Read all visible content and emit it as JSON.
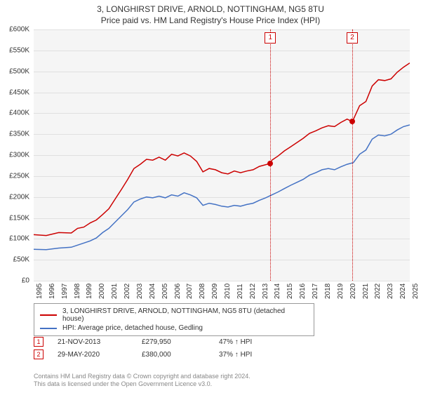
{
  "title_line1": "3, LONGHIRST DRIVE, ARNOLD, NOTTINGHAM, NG5 8TU",
  "title_line2": "Price paid vs. HM Land Registry's House Price Index (HPI)",
  "chart": {
    "type": "line",
    "background_color": "#f5f5f5",
    "grid_color": "#e0e0e0",
    "axis_text_color": "#333333",
    "label_fontsize": 10,
    "x": {
      "min": 1995,
      "max": 2025,
      "tick_step": 1
    },
    "y": {
      "min": 0,
      "max": 600000,
      "tick_step": 50000,
      "prefix": "£",
      "suffix": "K",
      "divisor": 1000
    },
    "series": [
      {
        "name": "3, LONGHIRST DRIVE, ARNOLD, NOTTINGHAM, NG5 8TU (detached house)",
        "color": "#cc0000",
        "line_width": 1.5,
        "points": [
          [
            1995,
            110000
          ],
          [
            1996,
            108000
          ],
          [
            1997,
            115000
          ],
          [
            1998,
            114000
          ],
          [
            1998.5,
            125000
          ],
          [
            1999,
            128000
          ],
          [
            1999.5,
            138000
          ],
          [
            2000,
            145000
          ],
          [
            2000.5,
            158000
          ],
          [
            2001,
            172000
          ],
          [
            2001.5,
            195000
          ],
          [
            2002,
            218000
          ],
          [
            2002.5,
            242000
          ],
          [
            2003,
            268000
          ],
          [
            2003.5,
            278000
          ],
          [
            2004,
            290000
          ],
          [
            2004.5,
            288000
          ],
          [
            2005,
            295000
          ],
          [
            2005.5,
            288000
          ],
          [
            2006,
            302000
          ],
          [
            2006.5,
            298000
          ],
          [
            2007,
            305000
          ],
          [
            2007.5,
            298000
          ],
          [
            2008,
            285000
          ],
          [
            2008.5,
            260000
          ],
          [
            2009,
            268000
          ],
          [
            2009.5,
            265000
          ],
          [
            2010,
            258000
          ],
          [
            2010.5,
            255000
          ],
          [
            2011,
            262000
          ],
          [
            2011.5,
            258000
          ],
          [
            2012,
            262000
          ],
          [
            2012.5,
            265000
          ],
          [
            2013,
            273000
          ],
          [
            2013.88,
            280000
          ],
          [
            2014,
            288000
          ],
          [
            2014.5,
            298000
          ],
          [
            2015,
            310000
          ],
          [
            2015.5,
            320000
          ],
          [
            2016,
            330000
          ],
          [
            2016.5,
            340000
          ],
          [
            2017,
            352000
          ],
          [
            2017.5,
            358000
          ],
          [
            2018,
            365000
          ],
          [
            2018.5,
            370000
          ],
          [
            2019,
            368000
          ],
          [
            2019.5,
            378000
          ],
          [
            2020,
            386000
          ],
          [
            2020.41,
            380000
          ],
          [
            2020.5,
            385000
          ],
          [
            2021,
            418000
          ],
          [
            2021.5,
            428000
          ],
          [
            2022,
            465000
          ],
          [
            2022.5,
            480000
          ],
          [
            2023,
            478000
          ],
          [
            2023.5,
            482000
          ],
          [
            2024,
            498000
          ],
          [
            2024.5,
            510000
          ],
          [
            2025,
            520000
          ]
        ]
      },
      {
        "name": "HPI: Average price, detached house, Gedling",
        "color": "#4472c4",
        "line_width": 1.5,
        "points": [
          [
            1995,
            75000
          ],
          [
            1996,
            74000
          ],
          [
            1997,
            78000
          ],
          [
            1998,
            80000
          ],
          [
            1998.5,
            85000
          ],
          [
            1999,
            90000
          ],
          [
            1999.5,
            95000
          ],
          [
            2000,
            102000
          ],
          [
            2000.5,
            115000
          ],
          [
            2001,
            125000
          ],
          [
            2001.5,
            140000
          ],
          [
            2002,
            155000
          ],
          [
            2002.5,
            170000
          ],
          [
            2003,
            188000
          ],
          [
            2003.5,
            195000
          ],
          [
            2004,
            200000
          ],
          [
            2004.5,
            198000
          ],
          [
            2005,
            202000
          ],
          [
            2005.5,
            198000
          ],
          [
            2006,
            205000
          ],
          [
            2006.5,
            202000
          ],
          [
            2007,
            210000
          ],
          [
            2007.5,
            205000
          ],
          [
            2008,
            198000
          ],
          [
            2008.5,
            180000
          ],
          [
            2009,
            185000
          ],
          [
            2009.5,
            182000
          ],
          [
            2010,
            178000
          ],
          [
            2010.5,
            176000
          ],
          [
            2011,
            180000
          ],
          [
            2011.5,
            178000
          ],
          [
            2012,
            182000
          ],
          [
            2012.5,
            185000
          ],
          [
            2013,
            192000
          ],
          [
            2013.5,
            198000
          ],
          [
            2014,
            205000
          ],
          [
            2014.5,
            212000
          ],
          [
            2015,
            220000
          ],
          [
            2015.5,
            228000
          ],
          [
            2016,
            235000
          ],
          [
            2016.5,
            242000
          ],
          [
            2017,
            252000
          ],
          [
            2017.5,
            258000
          ],
          [
            2018,
            265000
          ],
          [
            2018.5,
            268000
          ],
          [
            2019,
            265000
          ],
          [
            2019.5,
            272000
          ],
          [
            2020,
            278000
          ],
          [
            2020.5,
            282000
          ],
          [
            2021,
            302000
          ],
          [
            2021.5,
            312000
          ],
          [
            2022,
            338000
          ],
          [
            2022.5,
            348000
          ],
          [
            2023,
            346000
          ],
          [
            2023.5,
            350000
          ],
          [
            2024,
            360000
          ],
          [
            2024.5,
            368000
          ],
          [
            2025,
            372000
          ]
        ]
      }
    ],
    "markers": [
      {
        "num": "1",
        "x": 2013.88,
        "y": 279950,
        "color": "#cc0000"
      },
      {
        "num": "2",
        "x": 2020.41,
        "y": 380000,
        "color": "#cc0000"
      }
    ]
  },
  "sales": [
    {
      "num": "1",
      "date": "21-NOV-2013",
      "price": "£279,950",
      "hpi": "47% ↑ HPI"
    },
    {
      "num": "2",
      "date": "29-MAY-2020",
      "price": "£380,000",
      "hpi": "37% ↑ HPI"
    }
  ],
  "footer_line1": "Contains HM Land Registry data © Crown copyright and database right 2024.",
  "footer_line2": "This data is licensed under the Open Government Licence v3.0."
}
